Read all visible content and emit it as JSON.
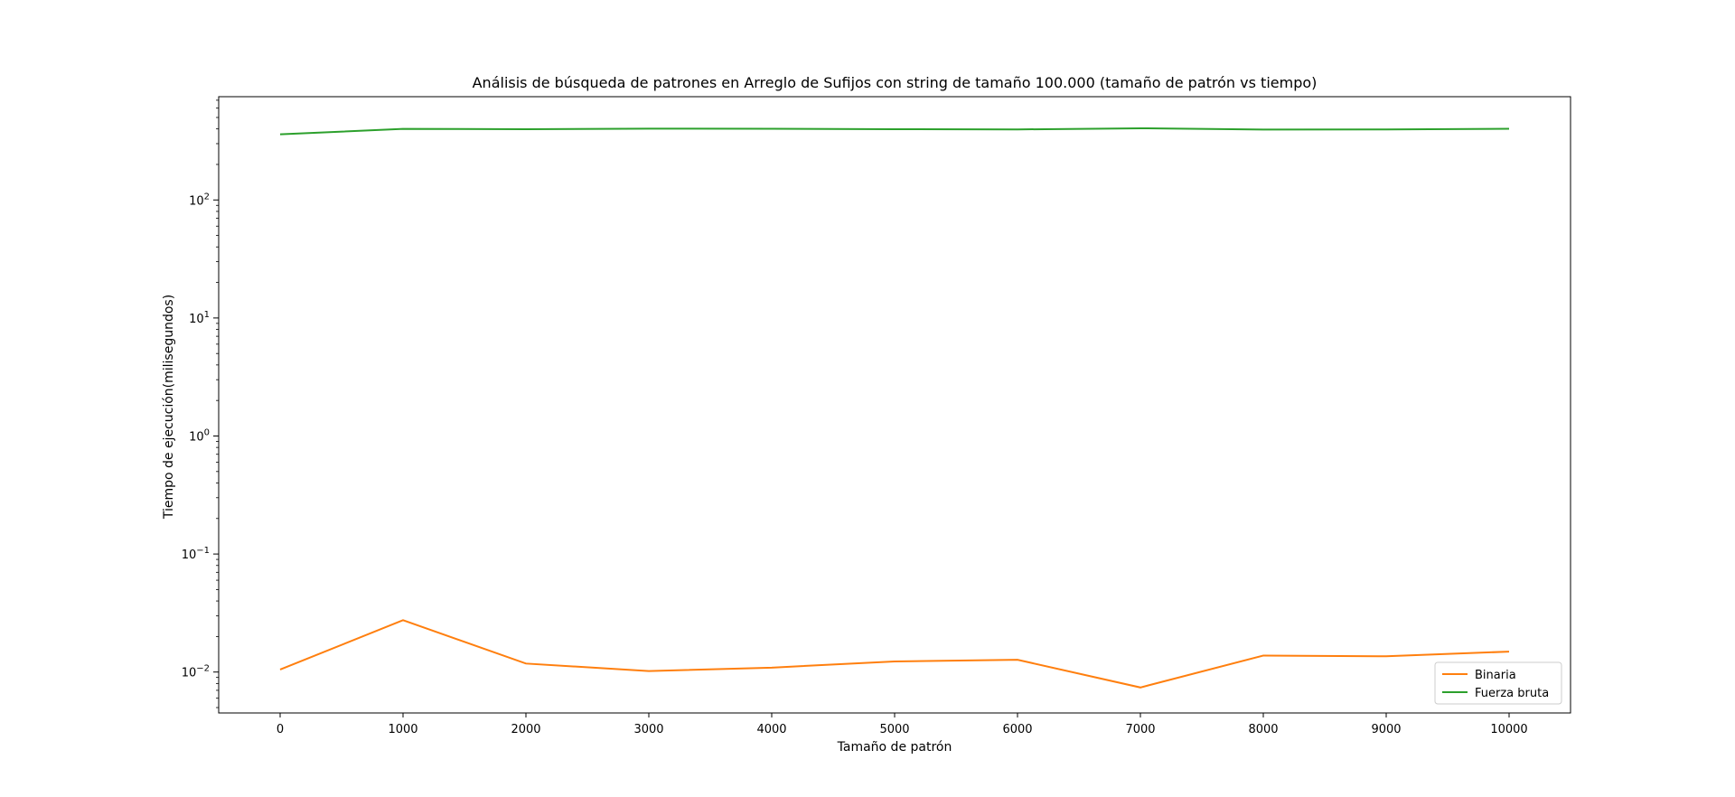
{
  "chart_data": {
    "type": "line",
    "title": "Análisis de búsqueda de patrones en Arreglo de Sufijos con string de tamaño 100.000 (tamaño de patrón vs tiempo)",
    "xlabel": "Tamaño de patrón",
    "ylabel": "Tiempo de ejecución(milisegundos)",
    "yscale": "log",
    "xlim": [
      -500,
      10500
    ],
    "ylim": [
      0.0045,
      750
    ],
    "x": [
      0,
      1000,
      2000,
      3000,
      4000,
      5000,
      6000,
      7000,
      8000,
      9000,
      10000
    ],
    "xticks": [
      "0",
      "1000",
      "2000",
      "3000",
      "4000",
      "5000",
      "6000",
      "7000",
      "8000",
      "9000",
      "10000"
    ],
    "yticks": [
      {
        "base": "10",
        "exp": "−2",
        "value": 0.01
      },
      {
        "base": "10",
        "exp": "−1",
        "value": 0.1
      },
      {
        "base": "10",
        "exp": "0",
        "value": 1
      },
      {
        "base": "10",
        "exp": "1",
        "value": 10
      },
      {
        "base": "10",
        "exp": "2",
        "value": 100
      }
    ],
    "series": [
      {
        "name": "Binaria",
        "color": "#ff7f0e",
        "values": [
          0.0105,
          0.0275,
          0.0118,
          0.0102,
          0.0109,
          0.0123,
          0.0127,
          0.0074,
          0.0138,
          0.0136,
          0.0149
        ]
      },
      {
        "name": "Fuerza bruta",
        "color": "#2ca02c",
        "values": [
          360,
          400,
          398,
          402,
          401,
          398,
          396,
          405,
          395,
          396,
          401
        ]
      }
    ],
    "legend_position": "lower-right",
    "grid": false
  }
}
